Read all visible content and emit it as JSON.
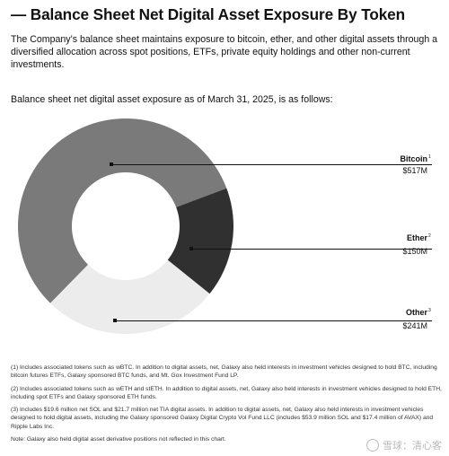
{
  "header": {
    "title": "— Balance Sheet Net Digital Asset Exposure By Token",
    "intro": "The Company’s balance sheet maintains exposure to bitcoin, ether, and other digital assets through a diversified allocation across spot positions, ETFs, private equity holdings and other non-current investments.",
    "subheading": "Balance sheet net digital asset exposure as of March 31, 2025, is as follows:"
  },
  "chart_data": {
    "type": "pie",
    "variant": "donut",
    "unit": "$M",
    "categories": [
      "Bitcoin",
      "Ether",
      "Other"
    ],
    "values": [
      517,
      150,
      241
    ],
    "display_values": [
      "$517M",
      "$150M",
      "$241M"
    ],
    "footnote_marks": [
      "1",
      "2",
      "3"
    ],
    "colors": [
      "#7a7a7a",
      "#303030",
      "#ececec"
    ],
    "legend": "right, leader lines"
  },
  "notes": {
    "n1": "(1) Includes associated tokens such as wBTC. In addition to digital assets, net, Galaxy also held interests in investment vehicles designed to hold BTC, including bitcoin futures ETFs, Galaxy sponsored BTC funds, and Mt. Gox Investment Fund LP.",
    "n2": "(2) Includes associated tokens such as wETH and stETH. In addition to digital assets, net, Galaxy also held interests in investment vehicles designed to hold ETH, including spot ETFs and Galaxy sponsored ETH funds.",
    "n3": "(3) Includes $19.6 million net SOL and $21.7 million net TIA digital assets. In addition to digital assets, net, Galaxy also held interests in investment vehicles designed to hold digital assets, including the Galaxy sponsored Galaxy Digital Crypto Vol Fund LLC (includes $53.9 million SOL and $17.4 million of AVAX) and Ripple Labs Inc.",
    "note": "Note: Galaxy also held digital asset derivative positions not reflected in this chart."
  },
  "watermark": {
    "text": "雪球：清心客",
    "icon": "snowball-logo-icon"
  }
}
